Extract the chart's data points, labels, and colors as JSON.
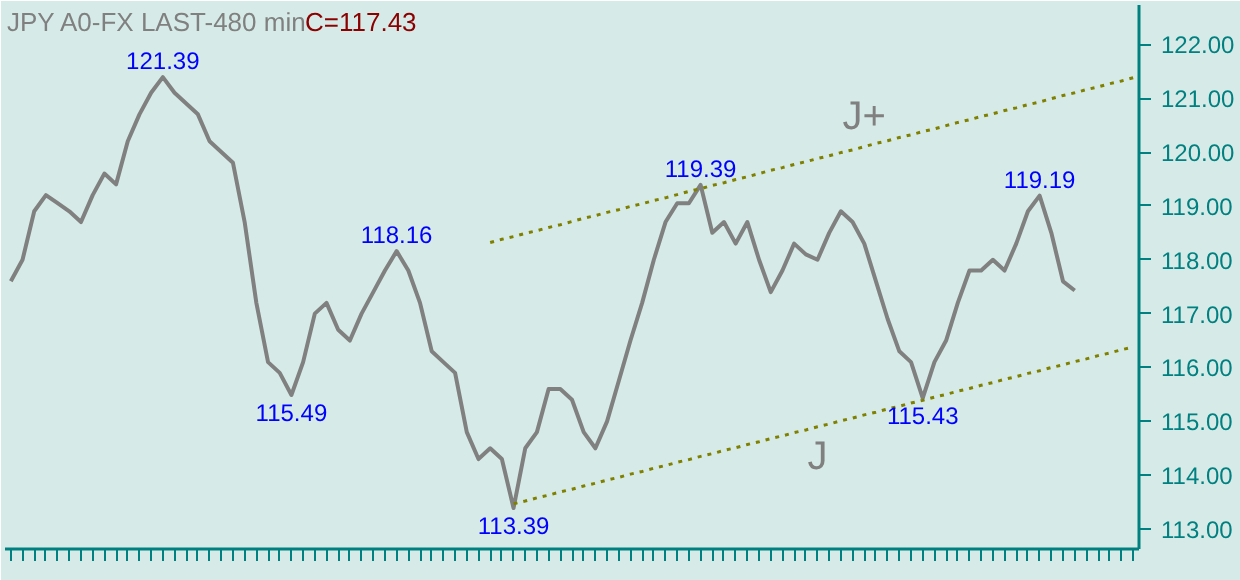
{
  "chart_data": {
    "type": "line",
    "title": "JPY A0-FX LAST-480 min",
    "categories": [
      null,
      null,
      null,
      null,
      null,
      null,
      null,
      null,
      null,
      null,
      null,
      null,
      null,
      null,
      null,
      null,
      null,
      null,
      null,
      null,
      null,
      null,
      null,
      null,
      null,
      null,
      null,
      null,
      null,
      null,
      null,
      null,
      null,
      null,
      null,
      null,
      null,
      null,
      null,
      null,
      null,
      null,
      null,
      null,
      null,
      null,
      null,
      null,
      null,
      null,
      null,
      null,
      null,
      null,
      null,
      null,
      null,
      null,
      null,
      null,
      null,
      null,
      null,
      null,
      null,
      null,
      null,
      null,
      null,
      null,
      null,
      null,
      null,
      null,
      null,
      null,
      null,
      null,
      null,
      null,
      null,
      null,
      null,
      null,
      null,
      null,
      null,
      null,
      null,
      null,
      null,
      null,
      null,
      null,
      null,
      null,
      null
    ],
    "ylim": [
      112.63,
      122.73
    ],
    "yticks": [
      {
        "value": 113,
        "label": "113.00"
      },
      {
        "value": 114,
        "label": "114.00"
      },
      {
        "value": 115,
        "label": "115.00"
      },
      {
        "value": 116,
        "label": "116.00"
      },
      {
        "value": 117,
        "label": "117.00"
      },
      {
        "value": 118,
        "label": "118.00"
      },
      {
        "value": 119,
        "label": "119.00"
      },
      {
        "value": 120,
        "label": "120.00"
      },
      {
        "value": 121,
        "label": "121.00"
      },
      {
        "value": 122,
        "label": "122.00"
      }
    ],
    "tick_labels": "y",
    "grid": false,
    "series": [
      {
        "color": "#808080",
        "values": [
          117.6,
          118.0,
          118.9,
          119.2,
          119.05,
          118.9,
          118.7,
          119.2,
          119.6,
          119.4,
          120.2,
          120.7,
          121.1,
          121.39,
          121.1,
          120.9,
          120.7,
          120.2,
          120.0,
          119.8,
          118.7,
          117.2,
          116.1,
          115.9,
          115.49,
          116.1,
          117.0,
          117.2,
          116.7,
          116.5,
          117.0,
          117.4,
          117.8,
          118.16,
          117.8,
          117.2,
          116.3,
          116.1,
          115.9,
          114.8,
          114.3,
          114.5,
          114.3,
          113.39,
          114.5,
          114.8,
          115.6,
          115.6,
          115.4,
          114.8,
          114.5,
          115.0,
          115.75,
          116.5,
          117.2,
          118.0,
          118.7,
          119.05,
          119.05,
          119.39,
          118.5,
          118.7,
          118.3,
          118.7,
          118.0,
          117.4,
          117.8,
          118.3,
          118.1,
          118.0,
          118.5,
          118.9,
          118.7,
          118.3,
          117.6,
          116.9,
          116.3,
          116.1,
          115.43,
          116.1,
          116.5,
          117.2,
          117.8,
          117.8,
          118.0,
          117.8,
          118.3,
          118.9,
          119.19,
          118.5,
          117.6,
          117.43,
          null,
          null,
          null,
          null,
          null
        ]
      },
      {
        "color": "#808000",
        "line_style": "dotted",
        "values": [
          null,
          null,
          null,
          null,
          null,
          null,
          null,
          null,
          null,
          null,
          null,
          null,
          null,
          null,
          null,
          null,
          null,
          null,
          null,
          null,
          null,
          null,
          null,
          null,
          null,
          null,
          null,
          null,
          null,
          null,
          null,
          null,
          null,
          null,
          null,
          null,
          null,
          null,
          null,
          null,
          null,
          118.32,
          118.38,
          118.43,
          118.49,
          118.54,
          118.6,
          118.65,
          118.71,
          118.77,
          118.82,
          118.88,
          118.93,
          118.99,
          119.04,
          119.1,
          119.15,
          119.21,
          119.27,
          119.32,
          119.38,
          119.43,
          119.49,
          119.54,
          119.6,
          119.66,
          119.71,
          119.77,
          119.82,
          119.88,
          119.93,
          119.99,
          120.04,
          120.1,
          120.16,
          120.21,
          120.27,
          120.32,
          120.38,
          120.43,
          120.49,
          120.55,
          120.6,
          120.66,
          120.71,
          120.77,
          120.82,
          120.88,
          120.93,
          120.99,
          121.05,
          121.1,
          121.16,
          121.21,
          121.27,
          121.32,
          121.38
        ]
      },
      {
        "color": "#808000",
        "line_style": "dotted",
        "values": [
          null,
          null,
          null,
          null,
          null,
          null,
          null,
          null,
          null,
          null,
          null,
          null,
          null,
          null,
          null,
          null,
          null,
          null,
          null,
          null,
          null,
          null,
          null,
          null,
          null,
          null,
          null,
          null,
          null,
          null,
          null,
          null,
          null,
          null,
          null,
          null,
          null,
          null,
          null,
          null,
          null,
          null,
          null,
          113.47,
          113.52,
          113.58,
          113.63,
          113.69,
          113.74,
          113.8,
          113.85,
          113.91,
          113.96,
          114.02,
          114.07,
          114.13,
          114.18,
          114.24,
          114.29,
          114.35,
          114.4,
          114.46,
          114.51,
          114.57,
          114.62,
          114.68,
          114.73,
          114.79,
          114.84,
          114.9,
          114.95,
          115.01,
          115.06,
          115.12,
          115.17,
          115.23,
          115.28,
          115.34,
          115.39,
          115.45,
          115.5,
          115.56,
          115.61,
          115.67,
          115.72,
          115.78,
          115.83,
          115.89,
          115.94,
          116.0,
          116.05,
          116.11,
          116.16,
          116.22,
          116.27,
          116.33,
          116.38
        ]
      }
    ],
    "annotations": [
      "C=117.43",
      {
        "text": "121.39",
        "y": 121.39
      },
      {
        "text": "115.49",
        "y": 115.49
      },
      {
        "text": "118.16",
        "y": 118.16
      },
      {
        "text": "113.39",
        "y": 113.39
      },
      {
        "text": "119.39",
        "y": 119.39
      },
      {
        "text": "115.43",
        "y": 115.43
      },
      {
        "text": "119.19",
        "y": 119.19
      },
      {
        "text": "J+",
        "y": 120.1
      },
      {
        "text": "J",
        "y": 114.9
      }
    ]
  }
}
